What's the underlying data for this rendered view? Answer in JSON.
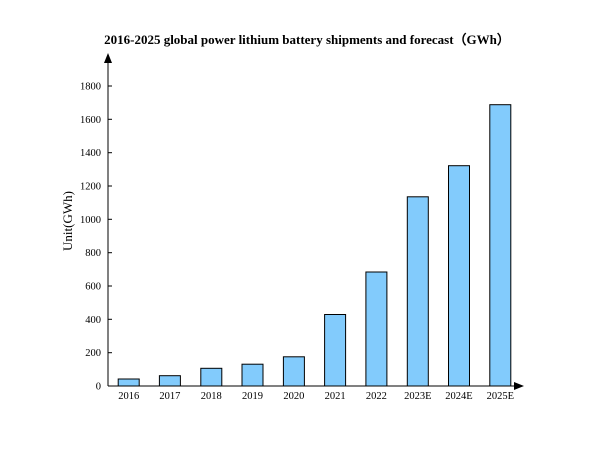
{
  "chart_data": {
    "type": "bar",
    "title": "2016-2025 global power lithium battery shipments and forecast（GWh）",
    "xlabel": "",
    "ylabel": "Unit(GWh)",
    "categories": [
      "2016",
      "2017",
      "2018",
      "2019",
      "2020",
      "2021",
      "2022",
      "2023E",
      "2024E",
      "2025E"
    ],
    "values": [
      42,
      62,
      106,
      131,
      175,
      429,
      684,
      1135,
      1322,
      1688
    ],
    "ylim": [
      0,
      1900
    ],
    "yticks": [
      0,
      200,
      400,
      600,
      800,
      1000,
      1200,
      1400,
      1600,
      1800
    ],
    "grid": false,
    "legend": "none",
    "bar_color": "#82cbfc"
  }
}
